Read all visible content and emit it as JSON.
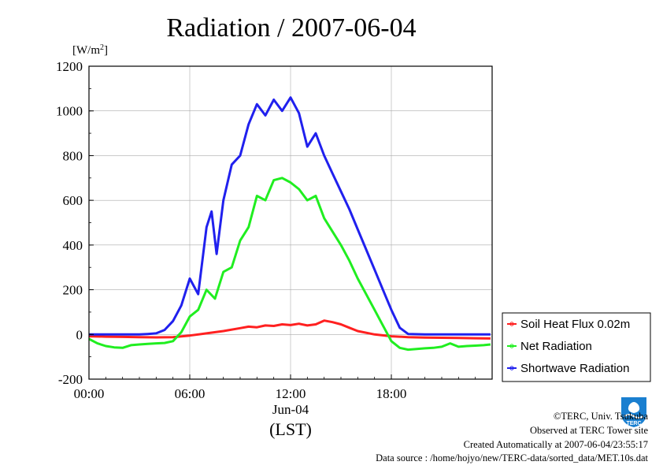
{
  "chart_data": {
    "type": "line",
    "title": "Radiation / 2007-06-04",
    "ylabel": "[W/m2]",
    "ylim": [
      -200,
      1200
    ],
    "xlim": [
      0,
      24
    ],
    "yticks": [
      "1200",
      "1000",
      "800",
      "600",
      "400",
      "200",
      "0",
      "-200"
    ],
    "xticks": [
      "00:00",
      "06:00",
      "12:00",
      "18:00"
    ],
    "xlabel_date": "Jun-04",
    "xlabel_unit": "(LST)",
    "grid": true,
    "legend_position": "right",
    "series": [
      {
        "name": "Soil Heat Flux 0.02m",
        "color": "#ff2020",
        "x": [
          0,
          1,
          2,
          3,
          4,
          5,
          6,
          7,
          8,
          9,
          9.5,
          10,
          10.5,
          11,
          11.5,
          12,
          12.5,
          13,
          13.5,
          14,
          14.5,
          15,
          15.5,
          16,
          17,
          18,
          19,
          20,
          21,
          22,
          23,
          23.9
        ],
        "values": [
          -8,
          -10,
          -11,
          -12,
          -13,
          -12,
          -5,
          5,
          15,
          28,
          35,
          32,
          40,
          38,
          45,
          42,
          48,
          40,
          45,
          62,
          55,
          45,
          30,
          15,
          0,
          -8,
          -12,
          -14,
          -15,
          -16,
          -17,
          -18
        ]
      },
      {
        "name": "Net Radiation",
        "color": "#20ee20",
        "x": [
          0,
          0.5,
          1,
          1.5,
          2,
          2.5,
          3,
          3.5,
          4,
          4.5,
          5,
          5.5,
          6,
          6.5,
          7,
          7.5,
          8,
          8.5,
          9,
          9.5,
          10,
          10.5,
          11,
          11.5,
          12,
          12.5,
          13,
          13.5,
          14,
          14.5,
          15,
          15.5,
          16,
          16.5,
          17,
          17.5,
          18,
          18.5,
          19,
          19.5,
          20,
          20.5,
          21,
          21.5,
          22,
          22.5,
          23,
          23.5,
          23.9
        ],
        "values": [
          -20,
          -40,
          -52,
          -58,
          -60,
          -48,
          -45,
          -42,
          -40,
          -38,
          -30,
          10,
          80,
          110,
          200,
          160,
          280,
          300,
          420,
          480,
          620,
          600,
          690,
          700,
          680,
          650,
          600,
          620,
          520,
          460,
          400,
          330,
          250,
          180,
          110,
          40,
          -30,
          -60,
          -68,
          -65,
          -62,
          -60,
          -55,
          -40,
          -55,
          -52,
          -50,
          -48,
          -45
        ]
      },
      {
        "name": "Shortwave Radiation",
        "color": "#2020ee",
        "x": [
          0,
          1,
          2,
          3,
          3.5,
          4,
          4.5,
          5,
          5.5,
          6,
          6.5,
          7,
          7.3,
          7.6,
          8,
          8.5,
          9,
          9.5,
          10,
          10.5,
          11,
          11.5,
          12,
          12.5,
          13,
          13.5,
          14,
          14.5,
          15,
          15.5,
          16,
          16.5,
          17,
          17.5,
          18,
          18.5,
          19,
          20,
          21,
          22,
          23,
          23.9
        ],
        "values": [
          0,
          0,
          0,
          0,
          2,
          5,
          20,
          60,
          130,
          250,
          180,
          480,
          550,
          360,
          600,
          760,
          800,
          940,
          1030,
          980,
          1050,
          1000,
          1060,
          990,
          840,
          900,
          800,
          720,
          640,
          560,
          470,
          380,
          290,
          200,
          110,
          30,
          2,
          0,
          0,
          0,
          0,
          0
        ]
      }
    ]
  },
  "footer": {
    "copyright": "©TERC, Univ. Tsukuba",
    "site": "Observed at TERC Tower site",
    "created": "Created Automatically at 2007-06-04/23:55:17",
    "source": "Data source : /home/hojyo/new/TERC-data/sorted_data/MET.10s.dat"
  },
  "logo": {
    "text": "TERC"
  }
}
